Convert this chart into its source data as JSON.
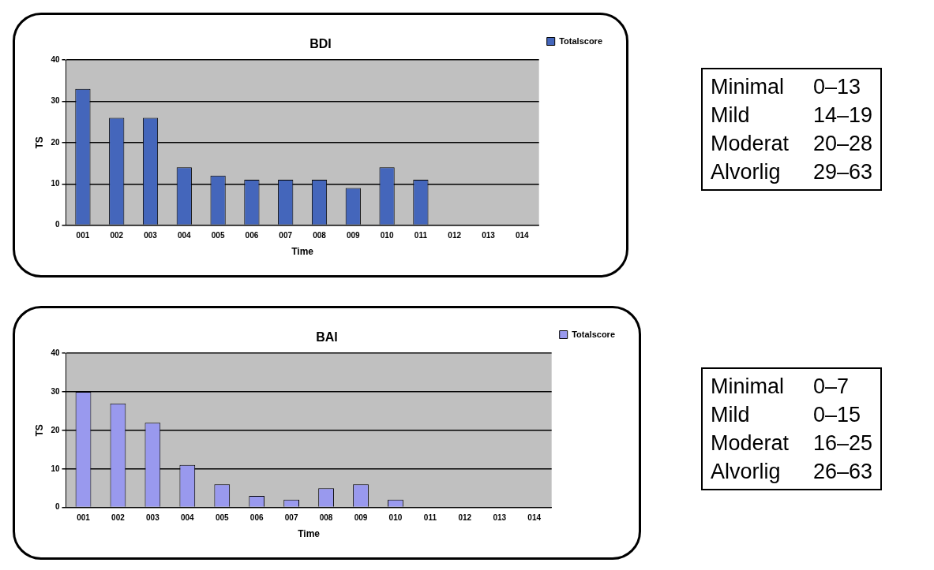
{
  "chart_data": [
    {
      "type": "bar",
      "title": "BDI",
      "xlabel": "Time",
      "ylabel": "TS",
      "categories": [
        "001",
        "002",
        "003",
        "004",
        "005",
        "006",
        "007",
        "008",
        "009",
        "010",
        "011",
        "012",
        "013",
        "014"
      ],
      "series": [
        {
          "name": "Totalscore",
          "color": "#4466bb",
          "values": [
            33,
            26,
            26,
            14,
            12,
            11,
            11,
            11,
            9,
            14,
            11,
            null,
            null,
            null
          ]
        }
      ],
      "ylim": [
        0,
        40
      ],
      "yticks": [
        0,
        10,
        20,
        30,
        40
      ],
      "grid": "y",
      "legend": "right"
    },
    {
      "type": "other",
      "annotations": [
        "Minimal",
        "0–13",
        "Mild",
        "14–19",
        "Moderat",
        "20–28",
        "Alvorlig",
        "29–63"
      ]
    },
    {
      "type": "bar",
      "title": "BAI",
      "xlabel": "Time",
      "ylabel": "TS",
      "categories": [
        "001",
        "002",
        "003",
        "004",
        "005",
        "006",
        "007",
        "008",
        "009",
        "010",
        "011",
        "012",
        "013",
        "014"
      ],
      "series": [
        {
          "name": "Totalscore",
          "color": "#9999ee",
          "values": [
            30,
            27,
            22,
            11,
            6,
            3,
            2,
            5,
            6,
            2,
            null,
            null,
            null,
            null
          ]
        }
      ],
      "ylim": [
        0,
        40
      ],
      "yticks": [
        0,
        10,
        20,
        30,
        40
      ],
      "grid": "y",
      "legend": "right"
    },
    {
      "type": "other",
      "annotations": [
        "Minimal",
        "0–7",
        "Mild",
        "0–15",
        "Moderat",
        "16–25",
        "Alvorlig",
        "26–63"
      ]
    }
  ]
}
